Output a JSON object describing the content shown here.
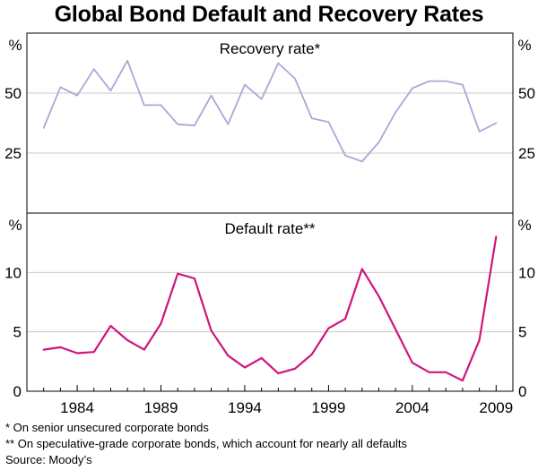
{
  "title": "Global Bond Default and Recovery Rates",
  "colors": {
    "recovery": "#a7a9d6",
    "default": "#d0147e",
    "grid": "#c8c8c8",
    "axis": "#000000"
  },
  "chart_data": [
    {
      "type": "line",
      "panel": "top",
      "title": "Recovery rate*",
      "unit": "%",
      "ylim": [
        0,
        75
      ],
      "yticks": [
        25,
        50
      ],
      "xlim": [
        1981,
        2010
      ],
      "series": [
        {
          "name": "Recovery rate",
          "x": [
            1982,
            1983,
            1984,
            1985,
            1986,
            1987,
            1988,
            1989,
            1990,
            1991,
            1992,
            1993,
            1994,
            1995,
            1996,
            1997,
            1998,
            1999,
            2000,
            2001,
            2002,
            2003,
            2004,
            2005,
            2006,
            2007,
            2008,
            2009
          ],
          "values": [
            35.5,
            52.5,
            49,
            60,
            51,
            63.5,
            45,
            45,
            37,
            36.5,
            49,
            37,
            53.5,
            47.5,
            62.5,
            56,
            39.5,
            38,
            24,
            21.5,
            29.5,
            42,
            52,
            55,
            55,
            53.5,
            34,
            37.5
          ]
        }
      ]
    },
    {
      "type": "line",
      "panel": "bottom",
      "title": "Default rate**",
      "unit": "%",
      "ylim": [
        0,
        15
      ],
      "yticks": [
        0,
        5,
        10
      ],
      "xlim": [
        1981,
        2010
      ],
      "xticks": [
        1984,
        1989,
        1994,
        1999,
        2004,
        2009
      ],
      "series": [
        {
          "name": "Default rate",
          "x": [
            1982,
            1983,
            1984,
            1985,
            1986,
            1987,
            1988,
            1989,
            1990,
            1991,
            1992,
            1993,
            1994,
            1995,
            1996,
            1997,
            1998,
            1999,
            2000,
            2001,
            2002,
            2003,
            2004,
            2005,
            2006,
            2007,
            2008,
            2009
          ],
          "values": [
            3.5,
            3.7,
            3.2,
            3.3,
            5.5,
            4.3,
            3.5,
            5.7,
            9.9,
            9.5,
            5.1,
            3.0,
            2.0,
            2.8,
            1.5,
            1.9,
            3.1,
            5.3,
            6.1,
            10.3,
            8.0,
            5.2,
            2.4,
            1.6,
            1.6,
            0.9,
            4.3,
            13.0
          ]
        }
      ]
    }
  ],
  "footnotes": {
    "note1": "*   On senior unsecured corporate bonds",
    "note2": "** On speculative-grade corporate bonds, which account for nearly all defaults",
    "source": "Source: Moody’s"
  }
}
